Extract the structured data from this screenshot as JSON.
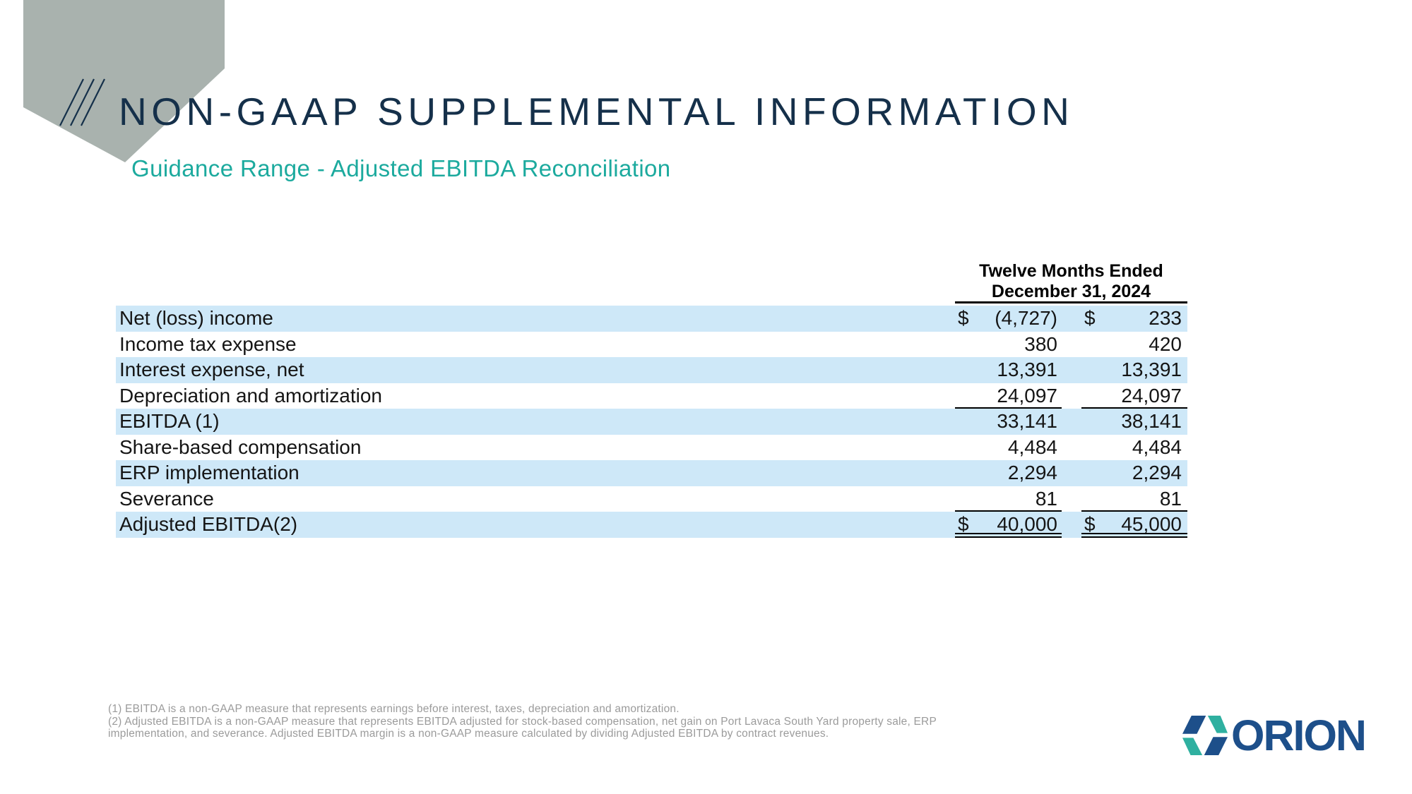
{
  "slide": {
    "title": "NON-GAAP SUPPLEMENTAL INFORMATION",
    "subtitle": "Guidance Range - Adjusted EBITDA Reconciliation"
  },
  "table": {
    "header_line1": "Twelve Months Ended",
    "header_line2": "December 31, 2024",
    "rows": [
      {
        "label": "Net (loss) income",
        "d1": "$",
        "v1": "(4,727)",
        "d2": "$",
        "v2": "233",
        "shade": true,
        "rule": "none"
      },
      {
        "label": "Income tax expense",
        "d1": "",
        "v1": "380",
        "d2": "",
        "v2": "420",
        "shade": false,
        "rule": "none"
      },
      {
        "label": "Interest expense, net",
        "d1": "",
        "v1": "13,391",
        "d2": "",
        "v2": "13,391",
        "shade": true,
        "rule": "none"
      },
      {
        "label": "Depreciation and amortization",
        "d1": "",
        "v1": "24,097",
        "d2": "",
        "v2": "24,097",
        "shade": false,
        "rule": "single"
      },
      {
        "label": "EBITDA (1)",
        "d1": "",
        "v1": "33,141",
        "d2": "",
        "v2": "38,141",
        "shade": true,
        "rule": "none"
      },
      {
        "label": "Share-based compensation",
        "d1": "",
        "v1": "4,484",
        "d2": "",
        "v2": "4,484",
        "shade": false,
        "rule": "none"
      },
      {
        "label": "ERP implementation",
        "d1": "",
        "v1": "2,294",
        "d2": "",
        "v2": "2,294",
        "shade": true,
        "rule": "none"
      },
      {
        "label": "Severance",
        "d1": "",
        "v1": "81",
        "d2": "",
        "v2": "81",
        "shade": false,
        "rule": "single"
      },
      {
        "label": "Adjusted EBITDA(2)",
        "d1": "$",
        "v1": "40,000",
        "d2": "$",
        "v2": "45,000",
        "shade": true,
        "rule": "double"
      }
    ]
  },
  "footnotes": [
    "(1) EBITDA is a non-GAAP measure that represents earnings before interest, taxes, depreciation and amortization.",
    "(2) Adjusted EBITDA is a non-GAAP measure that represents EBITDA adjusted for stock-based compensation, net gain on Port Lavaca South Yard property sale, ERP implementation, and severance. Adjusted EBITDA margin is a non-GAAP measure calculated by dividing Adjusted EBITDA by contract revenues."
  ],
  "logo": {
    "text": "ORION"
  },
  "colors": {
    "title_navy": "#15304a",
    "teal": "#1caa9e",
    "banner_gray": "#a9b2ae",
    "row_blue": "#cee8f8",
    "footnote_gray": "#9b9b9b",
    "logo_navy": "#1d4f8a",
    "logo_teal": "#2fb0a0"
  }
}
